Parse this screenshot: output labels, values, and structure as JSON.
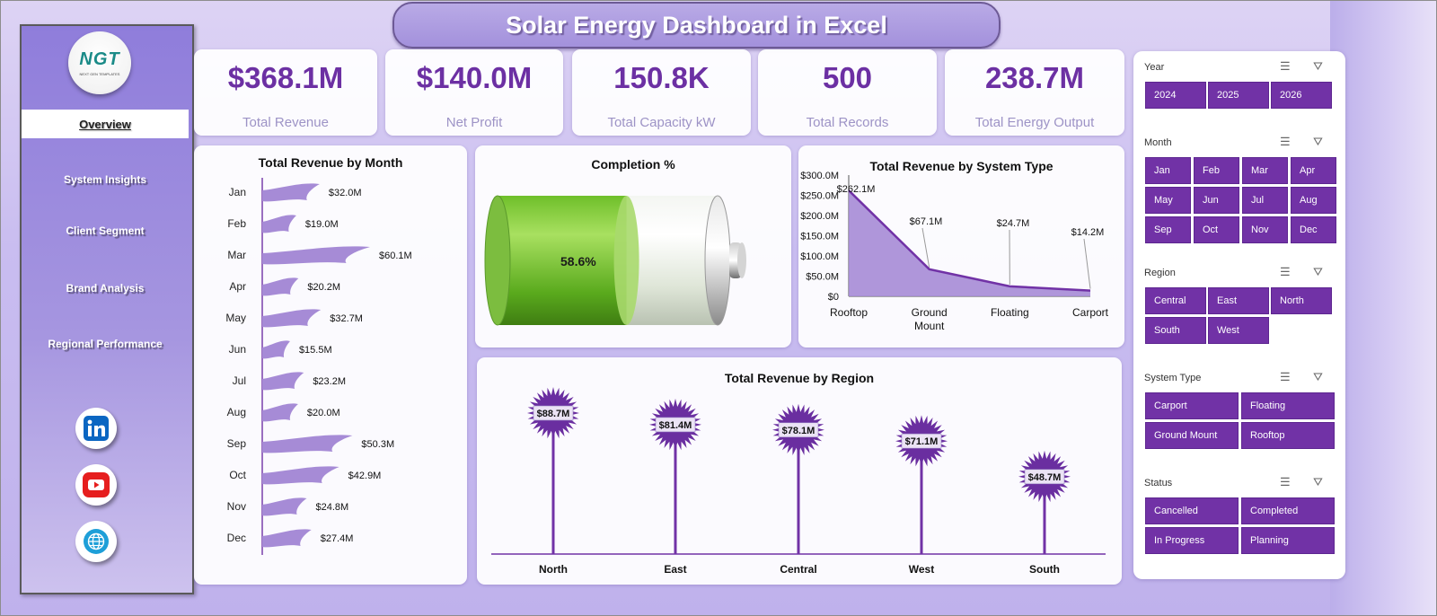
{
  "title": "Solar Energy Dashboard in Excel",
  "logo": {
    "text": "NGT",
    "subtext": "NEXT GEN TEMPLATES"
  },
  "nav": {
    "active": "Overview",
    "items": [
      "System Insights",
      "Client Segment",
      "Brand Analysis",
      "Regional Performance"
    ]
  },
  "social": [
    "linkedin-icon",
    "youtube-icon",
    "globe-icon"
  ],
  "kpis": [
    {
      "value": "$368.1M",
      "label": "Total Revenue"
    },
    {
      "value": "$140.0M",
      "label": "Net Profit"
    },
    {
      "value": "150.8K",
      "label": "Total Capacity kW"
    },
    {
      "value": "500",
      "label": "Total Records"
    },
    {
      "value": "238.7M",
      "label": "Total Energy Output"
    }
  ],
  "colors": {
    "accent": "#7132a6",
    "kpi_value": "#6c30a3",
    "chart_fill": "#a68bd6",
    "battery": "#7bc43a"
  },
  "completion": {
    "title": "Completion %",
    "value_label": "58.6%",
    "fraction": 0.586
  },
  "chart_data": [
    {
      "type": "bar",
      "title": "Total Revenue by Month",
      "categories": [
        "Jan",
        "Feb",
        "Mar",
        "Apr",
        "May",
        "Jun",
        "Jul",
        "Aug",
        "Sep",
        "Oct",
        "Nov",
        "Dec"
      ],
      "values": [
        32.0,
        19.0,
        60.1,
        20.2,
        32.7,
        15.5,
        23.2,
        20.0,
        50.3,
        42.9,
        24.8,
        27.4
      ],
      "labels": [
        "$32.0M",
        "$19.0M",
        "$60.1M",
        "$20.2M",
        "$32.7M",
        "$15.5M",
        "$23.2M",
        "$20.0M",
        "$50.3M",
        "$42.9M",
        "$24.8M",
        "$27.4M"
      ]
    },
    {
      "type": "area",
      "title": "Total Revenue by System Type",
      "categories": [
        "Rooftop",
        "Ground Mount",
        "Floating",
        "Carport"
      ],
      "values": [
        262.1,
        67.1,
        24.7,
        14.2
      ],
      "labels": [
        "$262.1M",
        "$67.1M",
        "$24.7M",
        "$14.2M"
      ],
      "yticks": [
        "$300.0M",
        "$250.0M",
        "$200.0M",
        "$150.0M",
        "$100.0M",
        "$50.0M",
        "$0"
      ],
      "ylim": [
        0,
        300
      ]
    },
    {
      "type": "bar",
      "title": "Total Revenue by Region",
      "categories": [
        "North",
        "East",
        "Central",
        "West",
        "South"
      ],
      "values": [
        88.7,
        81.4,
        78.1,
        71.1,
        48.7
      ],
      "labels": [
        "$88.7M",
        "$81.4M",
        "$78.1M",
        "$71.1M",
        "$48.7M"
      ]
    }
  ],
  "slicers": [
    {
      "name": "Year",
      "items": [
        "2024",
        "2025",
        "2026"
      ]
    },
    {
      "name": "Month",
      "items": [
        "Jan",
        "Feb",
        "Mar",
        "Apr",
        "May",
        "Jun",
        "Jul",
        "Aug",
        "Sep",
        "Oct",
        "Nov",
        "Dec"
      ]
    },
    {
      "name": "Region",
      "items": [
        "Central",
        "East",
        "North",
        "South",
        "West"
      ]
    },
    {
      "name": "System Type",
      "items": [
        "Carport",
        "Floating",
        "Ground Mount",
        "Rooftop"
      ]
    },
    {
      "name": "Status",
      "items": [
        "Cancelled",
        "Completed",
        "In Progress",
        "Planning"
      ]
    }
  ]
}
